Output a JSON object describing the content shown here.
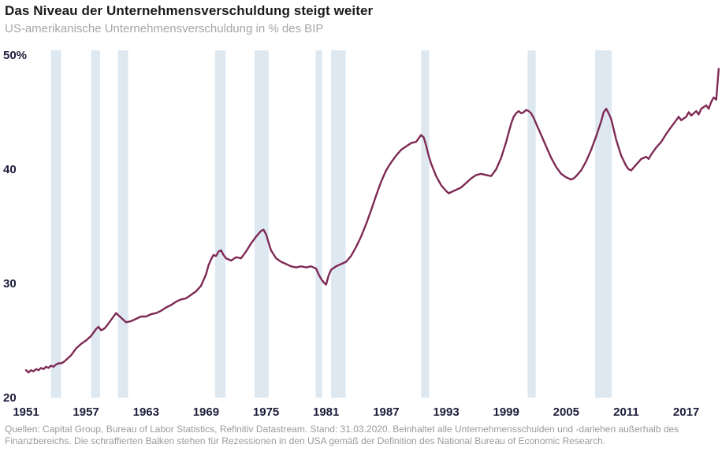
{
  "header": {
    "title": "Das Niveau der Unternehmensverschuldung steigt weiter",
    "subtitle": "US-amerikanische Unternehmensverschuldung in % des BIP"
  },
  "footer": {
    "note": "Quellen: Capital Group, Bureau of Labor Statistics, Refinitiv Datastream. Stand: 31.03.2020. Beinhaltet alle Unternehmensschulden und -darlehen außerhalb des Finanzbereichs. Die schraffierten Balken stehen für Rezessionen in den USA gemäß der Definition des National Bureau of Economic Research."
  },
  "colors": {
    "line": "#7e2a55",
    "recession_band": "#dde8f1",
    "axis_label": "#1d1d3a",
    "title": "#1a1a1a",
    "subtitle": "#a6a6a6",
    "note": "#9b9b9b"
  },
  "chart_data": {
    "type": "line",
    "title": "Das Niveau der Unternehmensverschuldung steigt weiter",
    "subtitle": "US-amerikanische Unternehmensverschuldung in % des BIP",
    "grid": false,
    "legend": "none",
    "x_range": [
      1951,
      2020.5
    ],
    "y_range": [
      20,
      50
    ],
    "y_ticks": [
      {
        "value": 50,
        "label": "50%"
      },
      {
        "value": 40,
        "label": "40"
      },
      {
        "value": 30,
        "label": "30"
      },
      {
        "value": 20,
        "label": "20"
      }
    ],
    "x_ticks": [
      {
        "value": 1951,
        "label": "1951"
      },
      {
        "value": 1957,
        "label": "1957"
      },
      {
        "value": 1963,
        "label": "1963"
      },
      {
        "value": 1969,
        "label": "1969"
      },
      {
        "value": 1975,
        "label": "1975"
      },
      {
        "value": 1981,
        "label": "1981"
      },
      {
        "value": 1987,
        "label": "1987"
      },
      {
        "value": 1993,
        "label": "1993"
      },
      {
        "value": 1999,
        "label": "1999"
      },
      {
        "value": 2005,
        "label": "2005"
      },
      {
        "value": 2011,
        "label": "2011"
      },
      {
        "value": 2017,
        "label": "2017"
      }
    ],
    "recession_bands": [
      [
        1953.5,
        1954.5
      ],
      [
        1957.5,
        1958.4
      ],
      [
        1960.2,
        1961.2
      ],
      [
        1969.9,
        1970.95
      ],
      [
        1973.85,
        1975.25
      ],
      [
        1979.95,
        1980.6
      ],
      [
        1981.5,
        1982.95
      ],
      [
        1990.5,
        1991.3
      ],
      [
        2001.15,
        2001.95
      ],
      [
        2007.9,
        2009.55
      ]
    ],
    "series": [
      {
        "name": "US-Unternehmensverschuldung in % des BIP",
        "points": [
          [
            1951.0,
            22.4
          ],
          [
            1951.25,
            22.2
          ],
          [
            1951.5,
            22.4
          ],
          [
            1951.75,
            22.3
          ],
          [
            1952.0,
            22.5
          ],
          [
            1952.25,
            22.4
          ],
          [
            1952.5,
            22.6
          ],
          [
            1952.75,
            22.5
          ],
          [
            1953.0,
            22.7
          ],
          [
            1953.25,
            22.6
          ],
          [
            1953.5,
            22.8
          ],
          [
            1953.75,
            22.7
          ],
          [
            1954.0,
            22.9
          ],
          [
            1954.25,
            23.0
          ],
          [
            1954.5,
            23.0
          ],
          [
            1954.75,
            23.1
          ],
          [
            1955.0,
            23.3
          ],
          [
            1955.5,
            23.7
          ],
          [
            1956.0,
            24.3
          ],
          [
            1956.5,
            24.7
          ],
          [
            1957.0,
            25.0
          ],
          [
            1957.25,
            25.2
          ],
          [
            1957.5,
            25.4
          ],
          [
            1957.75,
            25.7
          ],
          [
            1958.0,
            26.0
          ],
          [
            1958.25,
            26.2
          ],
          [
            1958.5,
            25.9
          ],
          [
            1958.75,
            26.0
          ],
          [
            1959.0,
            26.2
          ],
          [
            1959.5,
            26.8
          ],
          [
            1960.0,
            27.4
          ],
          [
            1960.25,
            27.2
          ],
          [
            1960.5,
            27.0
          ],
          [
            1961.0,
            26.6
          ],
          [
            1961.5,
            26.7
          ],
          [
            1962.0,
            26.9
          ],
          [
            1962.5,
            27.1
          ],
          [
            1963.0,
            27.1
          ],
          [
            1963.5,
            27.3
          ],
          [
            1964.0,
            27.4
          ],
          [
            1964.5,
            27.6
          ],
          [
            1965.0,
            27.9
          ],
          [
            1965.5,
            28.1
          ],
          [
            1966.0,
            28.4
          ],
          [
            1966.5,
            28.6
          ],
          [
            1967.0,
            28.7
          ],
          [
            1967.5,
            29.0
          ],
          [
            1968.0,
            29.3
          ],
          [
            1968.5,
            29.8
          ],
          [
            1969.0,
            30.8
          ],
          [
            1969.25,
            31.6
          ],
          [
            1969.5,
            32.1
          ],
          [
            1969.75,
            32.5
          ],
          [
            1970.0,
            32.4
          ],
          [
            1970.25,
            32.8
          ],
          [
            1970.5,
            32.9
          ],
          [
            1970.75,
            32.5
          ],
          [
            1971.0,
            32.2
          ],
          [
            1971.5,
            32.0
          ],
          [
            1972.0,
            32.3
          ],
          [
            1972.5,
            32.2
          ],
          [
            1973.0,
            32.8
          ],
          [
            1973.5,
            33.5
          ],
          [
            1974.0,
            34.1
          ],
          [
            1974.5,
            34.6
          ],
          [
            1974.75,
            34.7
          ],
          [
            1975.0,
            34.3
          ],
          [
            1975.25,
            33.6
          ],
          [
            1975.5,
            32.9
          ],
          [
            1976.0,
            32.2
          ],
          [
            1976.5,
            31.9
          ],
          [
            1977.0,
            31.7
          ],
          [
            1977.5,
            31.5
          ],
          [
            1978.0,
            31.4
          ],
          [
            1978.5,
            31.5
          ],
          [
            1979.0,
            31.4
          ],
          [
            1979.5,
            31.5
          ],
          [
            1980.0,
            31.3
          ],
          [
            1980.25,
            30.8
          ],
          [
            1980.5,
            30.4
          ],
          [
            1980.75,
            30.1
          ],
          [
            1981.0,
            29.9
          ],
          [
            1981.25,
            30.7
          ],
          [
            1981.5,
            31.2
          ],
          [
            1982.0,
            31.5
          ],
          [
            1982.5,
            31.7
          ],
          [
            1983.0,
            31.9
          ],
          [
            1983.5,
            32.4
          ],
          [
            1984.0,
            33.2
          ],
          [
            1984.5,
            34.1
          ],
          [
            1985.0,
            35.2
          ],
          [
            1985.5,
            36.4
          ],
          [
            1986.0,
            37.7
          ],
          [
            1986.5,
            38.9
          ],
          [
            1987.0,
            39.9
          ],
          [
            1987.5,
            40.6
          ],
          [
            1988.0,
            41.2
          ],
          [
            1988.5,
            41.7
          ],
          [
            1989.0,
            42.0
          ],
          [
            1989.5,
            42.3
          ],
          [
            1990.0,
            42.4
          ],
          [
            1990.25,
            42.7
          ],
          [
            1990.5,
            43.0
          ],
          [
            1990.75,
            42.8
          ],
          [
            1991.0,
            42.1
          ],
          [
            1991.25,
            41.2
          ],
          [
            1991.5,
            40.5
          ],
          [
            1992.0,
            39.4
          ],
          [
            1992.5,
            38.6
          ],
          [
            1993.0,
            38.1
          ],
          [
            1993.25,
            37.9
          ],
          [
            1993.5,
            38.0
          ],
          [
            1994.0,
            38.2
          ],
          [
            1994.5,
            38.4
          ],
          [
            1995.0,
            38.8
          ],
          [
            1995.5,
            39.2
          ],
          [
            1996.0,
            39.5
          ],
          [
            1996.5,
            39.6
          ],
          [
            1997.0,
            39.5
          ],
          [
            1997.5,
            39.4
          ],
          [
            1998.0,
            40.0
          ],
          [
            1998.5,
            41.0
          ],
          [
            1999.0,
            42.4
          ],
          [
            1999.25,
            43.2
          ],
          [
            1999.5,
            44.0
          ],
          [
            1999.75,
            44.6
          ],
          [
            2000.0,
            44.9
          ],
          [
            2000.25,
            45.1
          ],
          [
            2000.5,
            44.9
          ],
          [
            2000.75,
            45.0
          ],
          [
            2001.0,
            45.2
          ],
          [
            2001.25,
            45.1
          ],
          [
            2001.5,
            44.9
          ],
          [
            2001.75,
            44.5
          ],
          [
            2002.0,
            44.0
          ],
          [
            2002.5,
            43.0
          ],
          [
            2003.0,
            42.0
          ],
          [
            2003.5,
            41.0
          ],
          [
            2004.0,
            40.2
          ],
          [
            2004.5,
            39.6
          ],
          [
            2005.0,
            39.3
          ],
          [
            2005.5,
            39.1
          ],
          [
            2005.75,
            39.2
          ],
          [
            2006.0,
            39.4
          ],
          [
            2006.5,
            39.9
          ],
          [
            2007.0,
            40.7
          ],
          [
            2007.5,
            41.7
          ],
          [
            2008.0,
            42.9
          ],
          [
            2008.5,
            44.2
          ],
          [
            2008.75,
            45.0
          ],
          [
            2009.0,
            45.3
          ],
          [
            2009.25,
            44.9
          ],
          [
            2009.5,
            44.4
          ],
          [
            2009.75,
            43.5
          ],
          [
            2010.0,
            42.6
          ],
          [
            2010.5,
            41.2
          ],
          [
            2011.0,
            40.3
          ],
          [
            2011.25,
            40.0
          ],
          [
            2011.5,
            39.9
          ],
          [
            2012.0,
            40.4
          ],
          [
            2012.5,
            40.9
          ],
          [
            2013.0,
            41.1
          ],
          [
            2013.25,
            40.9
          ],
          [
            2013.5,
            41.3
          ],
          [
            2014.0,
            41.9
          ],
          [
            2014.5,
            42.4
          ],
          [
            2015.0,
            43.1
          ],
          [
            2015.5,
            43.7
          ],
          [
            2016.0,
            44.3
          ],
          [
            2016.25,
            44.6
          ],
          [
            2016.5,
            44.3
          ],
          [
            2017.0,
            44.6
          ],
          [
            2017.25,
            45.0
          ],
          [
            2017.5,
            44.7
          ],
          [
            2018.0,
            45.1
          ],
          [
            2018.25,
            44.8
          ],
          [
            2018.5,
            45.3
          ],
          [
            2019.0,
            45.6
          ],
          [
            2019.25,
            45.3
          ],
          [
            2019.5,
            45.9
          ],
          [
            2019.75,
            46.3
          ],
          [
            2020.0,
            46.1
          ],
          [
            2020.25,
            48.8
          ]
        ]
      }
    ]
  }
}
